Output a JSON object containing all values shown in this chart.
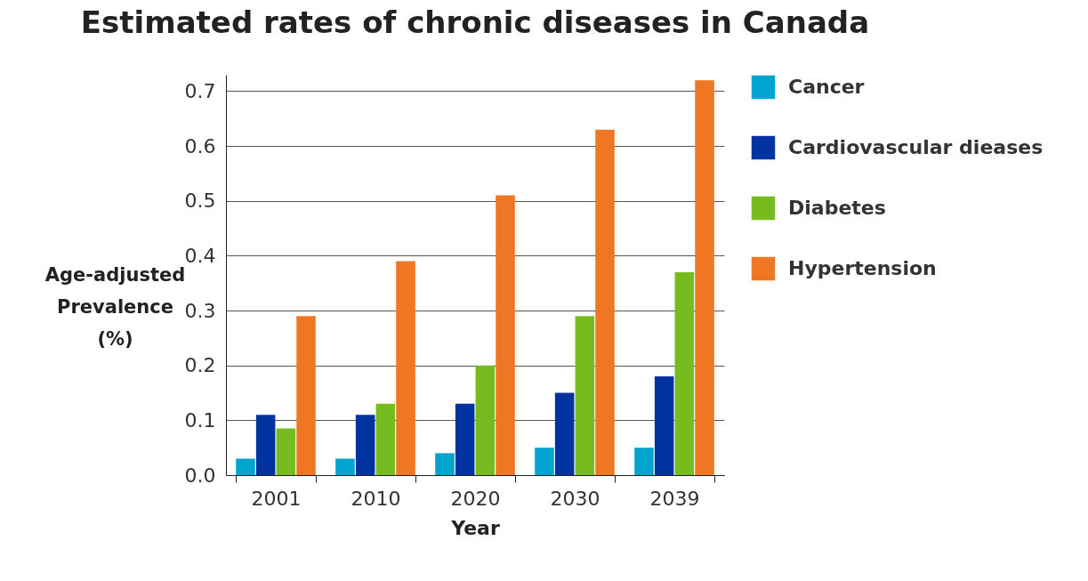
{
  "chart_data": {
    "type": "bar",
    "title": "Estimated rates of chronic diseases in Canada",
    "xlabel": "Year",
    "ylabel": "Age-adjusted Prevalence (%)",
    "categories": [
      "2001",
      "2010",
      "2020",
      "2030",
      "2039"
    ],
    "series": [
      {
        "name": "Cancer",
        "color": "#00a5cf",
        "values": [
          0.03,
          0.03,
          0.04,
          0.05,
          0.05
        ]
      },
      {
        "name": "Cardiovascular dieases",
        "color": "#0033a0",
        "values": [
          0.11,
          0.11,
          0.13,
          0.15,
          0.18
        ]
      },
      {
        "name": "Diabetes",
        "color": "#77bc1f",
        "values": [
          0.085,
          0.13,
          0.2,
          0.29,
          0.37
        ]
      },
      {
        "name": "Hypertension",
        "color": "#ef7622",
        "values": [
          0.29,
          0.39,
          0.51,
          0.63,
          0.72
        ]
      }
    ],
    "ylim": [
      0,
      0.73
    ],
    "yticks": [
      {
        "value": 0,
        "label": "0.0"
      },
      0.1,
      0.2,
      0.3,
      0.4,
      0.5,
      0.6,
      0.7
    ],
    "grid": "y",
    "legend": "right"
  }
}
